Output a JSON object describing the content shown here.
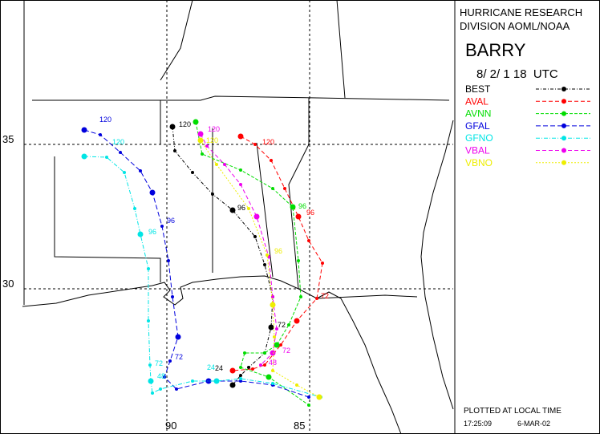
{
  "header": {
    "line1": "HURRICANE RESEARCH",
    "line2": "DIVISION AOML/NOAA",
    "storm": "BARRY",
    "time": "8/ 2/ 1 18  UTC"
  },
  "axes": {
    "lat": [
      "35",
      "30"
    ],
    "lon": [
      "90",
      "85"
    ]
  },
  "tracks": [
    {
      "name": "BEST",
      "color": "#000000",
      "labels": [
        "120",
        "96",
        "72",
        "24"
      ]
    },
    {
      "name": "AVAL",
      "color": "#ff0000",
      "labels": [
        "120",
        "96",
        "72"
      ]
    },
    {
      "name": "AVNN",
      "color": "#00dd00",
      "labels": [
        "96"
      ]
    },
    {
      "name": "GFAL",
      "color": "#0000dd",
      "labels": [
        "120",
        "96",
        "72"
      ]
    },
    {
      "name": "GFNO",
      "color": "#00e5e5",
      "labels": [
        "120",
        "96",
        "72",
        "48",
        "24"
      ]
    },
    {
      "name": "VBAL",
      "color": "#ee00ee",
      "labels": [
        "120",
        "72",
        "48"
      ]
    },
    {
      "name": "VBNO",
      "color": "#eeee00",
      "labels": [
        "120",
        "96"
      ]
    }
  ],
  "footer": {
    "note": "PLOTTED AT LOCAL TIME",
    "clock": "17:25:09",
    "date": "6-MAR-02"
  }
}
